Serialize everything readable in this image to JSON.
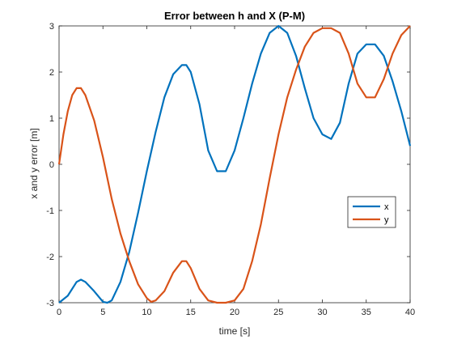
{
  "chart_data": {
    "type": "line",
    "title": "Error between h and X (P-M)",
    "xlabel": "time [s]",
    "ylabel": "x and y error [m]",
    "xlim": [
      0,
      40
    ],
    "ylim": [
      -3,
      3
    ],
    "xticks": [
      0,
      5,
      10,
      15,
      20,
      25,
      30,
      35,
      40
    ],
    "yticks": [
      -3,
      -2,
      -1,
      0,
      1,
      2,
      3
    ],
    "grid": false,
    "legend_position": "lower-right",
    "series": [
      {
        "name": "x",
        "color": "#0072BD",
        "points": [
          [
            0,
            -3.0
          ],
          [
            1,
            -2.85
          ],
          [
            2,
            -2.55
          ],
          [
            2.5,
            -2.5
          ],
          [
            3,
            -2.55
          ],
          [
            4,
            -2.75
          ],
          [
            5,
            -2.98
          ],
          [
            5.5,
            -3.0
          ],
          [
            6,
            -2.95
          ],
          [
            7,
            -2.55
          ],
          [
            8,
            -1.9
          ],
          [
            9,
            -1.05
          ],
          [
            10,
            -0.15
          ],
          [
            11,
            0.7
          ],
          [
            12,
            1.45
          ],
          [
            13,
            1.95
          ],
          [
            14,
            2.15
          ],
          [
            14.5,
            2.15
          ],
          [
            15,
            2.0
          ],
          [
            16,
            1.3
          ],
          [
            17,
            0.3
          ],
          [
            18,
            -0.15
          ],
          [
            19,
            -0.15
          ],
          [
            20,
            0.3
          ],
          [
            21,
            1.0
          ],
          [
            22,
            1.75
          ],
          [
            23,
            2.4
          ],
          [
            24,
            2.85
          ],
          [
            25,
            3.0
          ],
          [
            26,
            2.85
          ],
          [
            27,
            2.35
          ],
          [
            28,
            1.65
          ],
          [
            29,
            1.0
          ],
          [
            30,
            0.65
          ],
          [
            31,
            0.55
          ],
          [
            32,
            0.9
          ],
          [
            33,
            1.75
          ],
          [
            34,
            2.4
          ],
          [
            35,
            2.6
          ],
          [
            36,
            2.6
          ],
          [
            37,
            2.35
          ],
          [
            38,
            1.8
          ],
          [
            39,
            1.15
          ],
          [
            40,
            0.4
          ]
        ]
      },
      {
        "name": "y",
        "color": "#D95319",
        "points": [
          [
            0,
            0.0
          ],
          [
            0.5,
            0.65
          ],
          [
            1,
            1.15
          ],
          [
            1.5,
            1.5
          ],
          [
            2,
            1.65
          ],
          [
            2.5,
            1.65
          ],
          [
            3,
            1.5
          ],
          [
            4,
            0.95
          ],
          [
            5,
            0.15
          ],
          [
            6,
            -0.75
          ],
          [
            7,
            -1.5
          ],
          [
            8,
            -2.1
          ],
          [
            9,
            -2.6
          ],
          [
            10,
            -2.9
          ],
          [
            10.5,
            -2.98
          ],
          [
            11,
            -2.95
          ],
          [
            12,
            -2.75
          ],
          [
            13,
            -2.35
          ],
          [
            14,
            -2.1
          ],
          [
            14.5,
            -2.1
          ],
          [
            15,
            -2.25
          ],
          [
            16,
            -2.7
          ],
          [
            17,
            -2.95
          ],
          [
            18,
            -3.0
          ],
          [
            19,
            -3.0
          ],
          [
            20,
            -2.95
          ],
          [
            21,
            -2.7
          ],
          [
            22,
            -2.1
          ],
          [
            23,
            -1.3
          ],
          [
            24,
            -0.3
          ],
          [
            25,
            0.65
          ],
          [
            26,
            1.45
          ],
          [
            27,
            2.05
          ],
          [
            28,
            2.55
          ],
          [
            29,
            2.85
          ],
          [
            30,
            2.95
          ],
          [
            31,
            2.95
          ],
          [
            32,
            2.85
          ],
          [
            33,
            2.4
          ],
          [
            34,
            1.75
          ],
          [
            35,
            1.45
          ],
          [
            36,
            1.45
          ],
          [
            37,
            1.85
          ],
          [
            38,
            2.4
          ],
          [
            39,
            2.8
          ],
          [
            40,
            3.0
          ]
        ]
      }
    ]
  }
}
